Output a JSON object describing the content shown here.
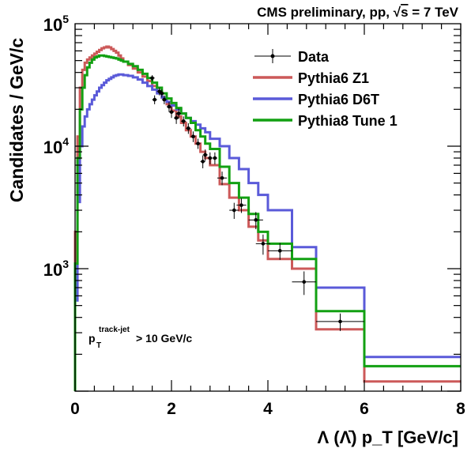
{
  "header": {
    "prefix": "CMS preliminary, pp, ",
    "sqrt_symbol": "√",
    "sqrt_arg": "s",
    "suffix": " = 7 TeV"
  },
  "annotation": {
    "p": "p",
    "sub": "T",
    "sup": "track-jet",
    "rest": " > 10 GeV/c"
  },
  "chart_data": {
    "type": "line",
    "title": "CMS preliminary, pp, √s = 7 TeV",
    "xlabel": "Λ (Λ̄) p_T [GeV/c]",
    "ylabel": "Candidates / GeV/c",
    "xlim": [
      0,
      8
    ],
    "ylim": [
      100,
      100000
    ],
    "yscale": "log",
    "grid": false,
    "legend_position": "top-right",
    "x_ticks": [
      {
        "value": 0,
        "label": "0"
      },
      {
        "value": 2,
        "label": "2"
      },
      {
        "value": 4,
        "label": "4"
      },
      {
        "value": 6,
        "label": "6"
      },
      {
        "value": 8,
        "label": "8"
      }
    ],
    "y_ticks": [
      {
        "value": 1000,
        "base": "10",
        "exp": "3"
      },
      {
        "value": 10000,
        "base": "10",
        "exp": "4"
      },
      {
        "value": 100000,
        "base": "10",
        "exp": "5"
      }
    ],
    "series": [
      {
        "name": "Data",
        "kind": "points",
        "color": "#000000",
        "points": [
          {
            "x": 1.6,
            "y": 36000,
            "xerr": 0.05,
            "yerr": 2000
          },
          {
            "x": 1.65,
            "y": 24000,
            "xerr": 0.05,
            "yerr": 2000
          },
          {
            "x": 1.75,
            "y": 28000,
            "xerr": 0.05,
            "yerr": 2000
          },
          {
            "x": 1.8,
            "y": 27000,
            "xerr": 0.05,
            "yerr": 2000
          },
          {
            "x": 1.85,
            "y": 24000,
            "xerr": 0.05,
            "yerr": 2000
          },
          {
            "x": 1.95,
            "y": 21000,
            "xerr": 0.05,
            "yerr": 2000
          },
          {
            "x": 2.0,
            "y": 19000,
            "xerr": 0.05,
            "yerr": 2000
          },
          {
            "x": 2.1,
            "y": 17000,
            "xerr": 0.05,
            "yerr": 1800
          },
          {
            "x": 2.15,
            "y": 18500,
            "xerr": 0.05,
            "yerr": 1800
          },
          {
            "x": 2.25,
            "y": 16000,
            "xerr": 0.05,
            "yerr": 1500
          },
          {
            "x": 2.35,
            "y": 14000,
            "xerr": 0.05,
            "yerr": 1400
          },
          {
            "x": 2.45,
            "y": 12000,
            "xerr": 0.05,
            "yerr": 1200
          },
          {
            "x": 2.55,
            "y": 10500,
            "xerr": 0.05,
            "yerr": 1000
          },
          {
            "x": 2.65,
            "y": 7500,
            "xerr": 0.05,
            "yerr": 900
          },
          {
            "x": 2.7,
            "y": 8500,
            "xerr": 0.05,
            "yerr": 900
          },
          {
            "x": 2.8,
            "y": 8000,
            "xerr": 0.05,
            "yerr": 900
          },
          {
            "x": 2.9,
            "y": 8000,
            "xerr": 0.05,
            "yerr": 900
          },
          {
            "x": 3.05,
            "y": 5500,
            "xerr": 0.1,
            "yerr": 700
          },
          {
            "x": 3.3,
            "y": 3000,
            "xerr": 0.1,
            "yerr": 450
          },
          {
            "x": 3.45,
            "y": 3300,
            "xerr": 0.1,
            "yerr": 450
          },
          {
            "x": 3.75,
            "y": 2500,
            "xerr": 0.15,
            "yerr": 400
          },
          {
            "x": 3.9,
            "y": 1600,
            "xerr": 0.15,
            "yerr": 300
          },
          {
            "x": 4.25,
            "y": 1400,
            "xerr": 0.25,
            "yerr": 220
          },
          {
            "x": 4.75,
            "y": 780,
            "xerr": 0.25,
            "yerr": 170
          },
          {
            "x": 5.5,
            "y": 370,
            "xerr": 0.5,
            "yerr": 60
          }
        ]
      },
      {
        "name": "Pythia6 Z1",
        "kind": "step",
        "color": "#cc5959",
        "edges": [
          0,
          0.05,
          0.1,
          0.15,
          0.2,
          0.25,
          0.3,
          0.35,
          0.4,
          0.45,
          0.5,
          0.55,
          0.6,
          0.65,
          0.7,
          0.75,
          0.8,
          0.85,
          0.9,
          0.95,
          1.0,
          1.1,
          1.2,
          1.3,
          1.4,
          1.5,
          1.6,
          1.7,
          1.8,
          1.9,
          2.0,
          2.1,
          2.2,
          2.3,
          2.4,
          2.5,
          2.6,
          2.7,
          2.8,
          3.0,
          3.2,
          3.4,
          3.6,
          3.8,
          4.0,
          4.5,
          5.0,
          6.0,
          8.0
        ],
        "values": [
          2000,
          12000,
          30000,
          42000,
          48000,
          51000,
          53000,
          55000,
          57000,
          59000,
          61000,
          63000,
          64000,
          65000,
          64000,
          62000,
          60000,
          58000,
          55000,
          52000,
          49000,
          46000,
          43000,
          40000,
          37000,
          34000,
          31000,
          28000,
          25000,
          22000,
          19500,
          17500,
          15500,
          13500,
          12000,
          10500,
          9000,
          8000,
          7000,
          4900,
          3800,
          3000,
          2200,
          1700,
          1200,
          1000,
          320,
          120
        ]
      },
      {
        "name": "Pythia6 D6T",
        "kind": "step",
        "color": "#5a5ad9",
        "edges": [
          0,
          0.05,
          0.1,
          0.15,
          0.2,
          0.25,
          0.3,
          0.35,
          0.4,
          0.45,
          0.5,
          0.55,
          0.6,
          0.65,
          0.7,
          0.75,
          0.8,
          0.85,
          0.9,
          0.95,
          1.0,
          1.1,
          1.2,
          1.3,
          1.4,
          1.5,
          1.6,
          1.7,
          1.8,
          1.9,
          2.0,
          2.1,
          2.2,
          2.3,
          2.4,
          2.5,
          2.6,
          2.7,
          2.8,
          3.0,
          3.2,
          3.4,
          3.6,
          3.8,
          4.0,
          4.5,
          5.0,
          6.0,
          8.0
        ],
        "values": [
          550,
          3500,
          10000,
          14500,
          17500,
          20000,
          22000,
          24000,
          26000,
          28000,
          30000,
          31500,
          33000,
          34500,
          35500,
          36500,
          37500,
          38000,
          38500,
          38500,
          38000,
          37500,
          36500,
          35000,
          33000,
          31000,
          29000,
          27000,
          25000,
          23000,
          21500,
          20000,
          18500,
          17000,
          16000,
          15000,
          14000,
          13000,
          11500,
          10000,
          8000,
          6500,
          5000,
          4000,
          3000,
          1500,
          700,
          190
        ]
      },
      {
        "name": "Pythia8 Tune 1",
        "kind": "step",
        "color": "#12a012",
        "edges": [
          0,
          0.05,
          0.1,
          0.15,
          0.2,
          0.25,
          0.3,
          0.35,
          0.4,
          0.45,
          0.5,
          0.55,
          0.6,
          0.65,
          0.7,
          0.75,
          0.8,
          0.85,
          0.9,
          0.95,
          1.0,
          1.1,
          1.2,
          1.3,
          1.4,
          1.5,
          1.6,
          1.7,
          1.8,
          1.9,
          2.0,
          2.1,
          2.2,
          2.3,
          2.4,
          2.5,
          2.6,
          2.7,
          2.8,
          3.0,
          3.2,
          3.4,
          3.6,
          3.8,
          4.0,
          4.5,
          5.0,
          6.0,
          8.0
        ],
        "values": [
          1100,
          8000,
          20000,
          30000,
          38000,
          44000,
          48000,
          51000,
          53000,
          54000,
          55000,
          55000,
          54500,
          54000,
          53500,
          53000,
          52500,
          52000,
          51000,
          50000,
          49000,
          47000,
          45000,
          42000,
          39000,
          36000,
          33000,
          30000,
          27000,
          24500,
          22500,
          20500,
          18500,
          17000,
          15500,
          13500,
          12000,
          10500,
          9500,
          6800,
          5000,
          3800,
          2800,
          2000,
          1600,
          1200,
          450,
          160
        ]
      }
    ]
  }
}
